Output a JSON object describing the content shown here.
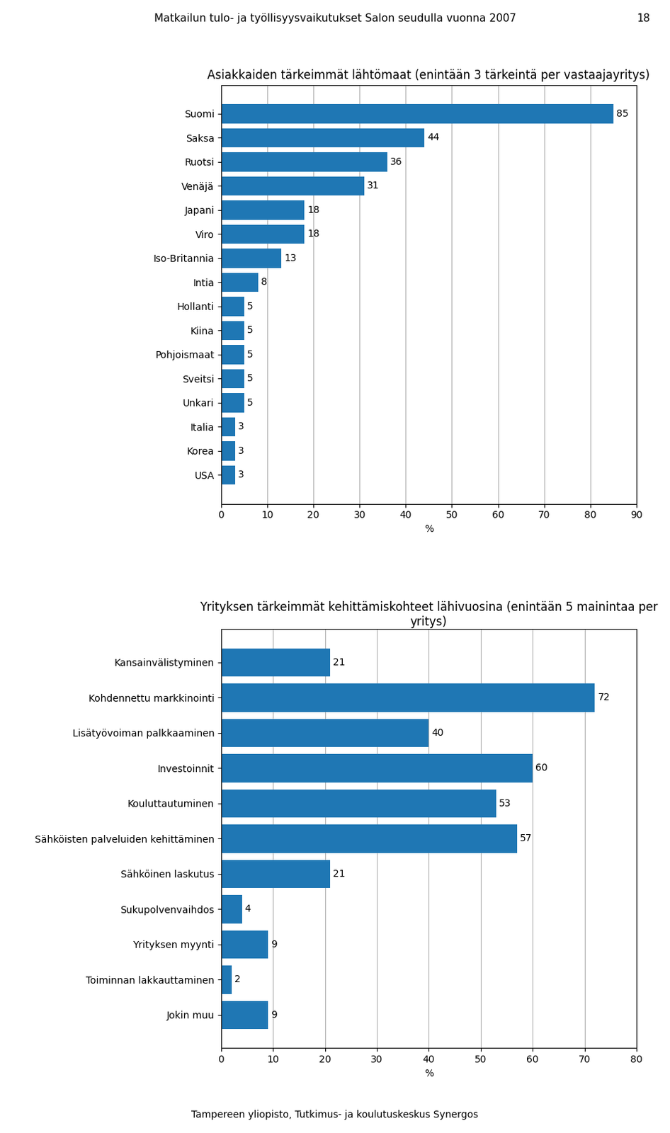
{
  "title": "Matkailun tulo- ja työllisyysvaikutukset Salon seudulla vuonna 2007",
  "annotations": [
    "18",
    "Tampereen yliopisto, Tutkimus- ja koulutuskeskus Synergos"
  ],
  "chart_data": [
    {
      "type": "bar",
      "orientation": "horizontal",
      "title": "Asiakkaiden tärkeimmät lähtömaat (enintään 3 tärkeintä per vastaajayritys)",
      "categories": [
        "Suomi",
        "Saksa",
        "Ruotsi",
        "Venäjä",
        "Japani",
        "Viro",
        "Iso-Britannia",
        "Intia",
        "Hollanti",
        "Kiina",
        "Pohjoismaat",
        "Sveitsi",
        "Unkari",
        "Italia",
        "Korea",
        "USA"
      ],
      "values": [
        85,
        44,
        36,
        31,
        18,
        18,
        13,
        8,
        5,
        5,
        5,
        5,
        5,
        3,
        3,
        3
      ],
      "xlabel": "%",
      "xlim": [
        0,
        90
      ],
      "xticks": [
        0,
        10,
        20,
        30,
        40,
        50,
        60,
        70,
        80,
        90
      ],
      "grid": true,
      "data_labels": true
    },
    {
      "type": "bar",
      "orientation": "horizontal",
      "title": "Yrityksen tärkeimmät kehittämiskohteet lähivuosina (enintään 5 mainintaa per yritys)",
      "categories": [
        "Kansainvälistyminen",
        "Kohdennettu markkinointi",
        "Lisätyövoiman palkkaaminen",
        "Investoinnit",
        "Kouluttautuminen",
        "Sähköisten palveluiden kehittäminen",
        "Sähköinen laskutus",
        "Sukupolvenvaihdos",
        "Yrityksen myynti",
        "Toiminnan lakkauttaminen",
        "Jokin muu"
      ],
      "values": [
        21,
        72,
        40,
        60,
        53,
        57,
        21,
        4,
        9,
        2,
        9
      ],
      "xlabel": "%",
      "xlim": [
        0,
        80
      ],
      "xticks": [
        0,
        10,
        20,
        30,
        40,
        50,
        60,
        70,
        80
      ],
      "grid": true,
      "data_labels": true
    }
  ]
}
